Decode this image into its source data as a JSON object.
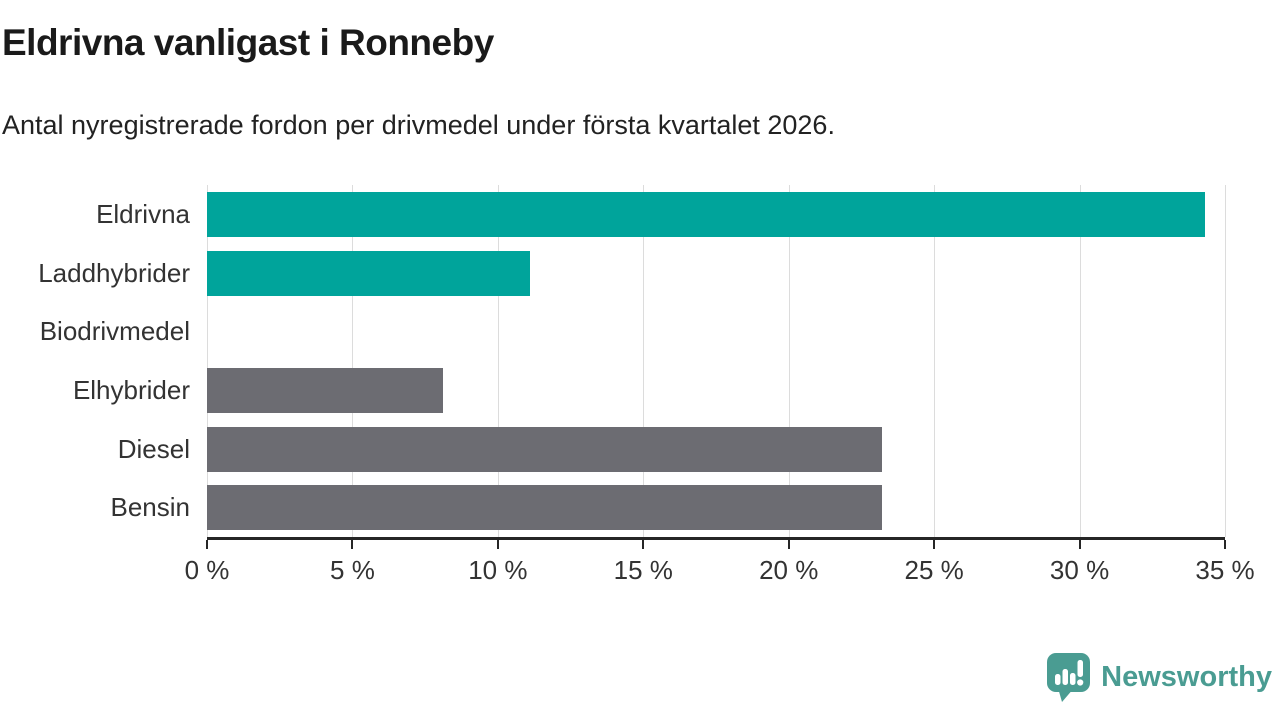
{
  "header": {
    "title": "Eldrivna vanligast i Ronneby",
    "subtitle": "Antal nyregistrerade fordon per drivmedel under första kvartalet 2026."
  },
  "chart_data": {
    "type": "bar",
    "orientation": "horizontal",
    "title": "Eldrivna vanligast i Ronneby",
    "subtitle": "Antal nyregistrerade fordon per drivmedel under första kvartalet 2026.",
    "categories": [
      "Eldrivna",
      "Laddhybrider",
      "Biodrivmedel",
      "Elhybrider",
      "Diesel",
      "Bensin"
    ],
    "values": [
      34.3,
      11.1,
      0,
      8.1,
      23.2,
      23.2
    ],
    "unit": "%",
    "bar_colors": [
      "#00a49b",
      "#00a49b",
      "#6c6c72",
      "#6c6c72",
      "#6c6c72",
      "#6c6c72"
    ],
    "xlim": [
      0,
      35
    ],
    "xticks": [
      0,
      5,
      10,
      15,
      20,
      25,
      30,
      35
    ],
    "xtick_labels": [
      "0 %",
      "5 %",
      "10 %",
      "15 %",
      "20 %",
      "25 %",
      "30 %",
      "35 %"
    ],
    "grid": true,
    "legend": false
  },
  "colors": {
    "highlight": "#00a49b",
    "muted": "#6c6c72",
    "gridline": "#dcdcdc",
    "axis": "#262626",
    "tick_text": "#333333",
    "title_text": "#1a1a1a",
    "brand": "#4a9c92"
  },
  "footer": {
    "brand_name": "Newsworthy"
  },
  "icons": {
    "brand_logo": "newsworthy-speech-bubble-chart-icon"
  }
}
